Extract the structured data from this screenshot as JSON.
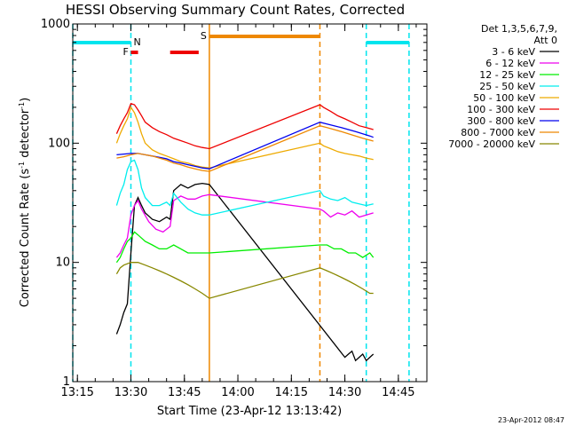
{
  "chart_data": {
    "type": "line",
    "title": "HESSI Observing Summary Count Rates, Corrected",
    "xlabel": "Start Time (23-Apr-12 13:13:42)",
    "ylabel": "Corrected Count Rate (s",
    "ylabel_sup": "-1",
    "ylabel_mid": " detector",
    "ylabel_end": ")",
    "footer": "23-Apr-2012 08:47",
    "y_scale": "log",
    "ylim": [
      1,
      1000
    ],
    "xlim": [
      "13:13:42",
      "14:53"
    ],
    "y_ticks": [
      {
        "v": 1,
        "label": "1"
      },
      {
        "v": 10,
        "label": "10"
      },
      {
        "v": 100,
        "label": "100"
      },
      {
        "v": 1000,
        "label": "1000"
      }
    ],
    "x_ticks": [
      {
        "t": "13:15",
        "label": "13:15"
      },
      {
        "t": "13:30",
        "label": "13:30"
      },
      {
        "t": "13:45",
        "label": "13:45"
      },
      {
        "t": "14:00",
        "label": "14:00"
      },
      {
        "t": "14:15",
        "label": "14:15"
      },
      {
        "t": "14:30",
        "label": "14:30"
      },
      {
        "t": "14:45",
        "label": "14:45"
      }
    ],
    "legend": {
      "header": [
        "Det 1,3,5,6,7,9,",
        "Att 0"
      ],
      "placement": "right"
    },
    "flags": {
      "night": {
        "label": "N",
        "color": "#00e5ee",
        "intervals": [
          [
            "13:13:42",
            "13:30"
          ],
          [
            "14:36",
            "14:48"
          ]
        ]
      },
      "flare": {
        "label": "F",
        "color": "#ee0000",
        "intervals": [
          [
            "13:30",
            "13:32"
          ],
          [
            "13:41",
            "13:49"
          ]
        ]
      },
      "saa": {
        "label": "S",
        "color": "#ee8800",
        "intervals": [
          [
            "13:52",
            "14:23"
          ]
        ]
      }
    },
    "series": [
      {
        "name": "3 - 6 keV",
        "color": "#000000",
        "x": [
          "13:26",
          "13:27",
          "13:28",
          "13:29",
          "13:30",
          "13:31",
          "13:32",
          "13:33",
          "13:34",
          "13:36",
          "13:38",
          "13:40",
          "13:41",
          "13:42",
          "13:44",
          "13:46",
          "13:48",
          "13:50",
          "13:52",
          "14:30",
          "14:31",
          "14:32",
          "14:33",
          "14:34",
          "14:35",
          "14:36",
          "14:37",
          "14:38"
        ],
        "y": [
          2.5,
          3,
          3.8,
          4.5,
          12,
          30,
          35,
          30,
          26,
          23,
          22,
          24,
          23,
          40,
          45,
          42,
          45,
          46,
          45,
          1.6,
          1.7,
          1.8,
          1.5,
          1.6,
          1.7,
          1.5,
          1.6,
          1.7
        ]
      },
      {
        "name": "6 - 12 keV",
        "color": "#ee00ee",
        "x": [
          "13:26",
          "13:27",
          "13:28",
          "13:29",
          "13:30",
          "13:31",
          "13:32",
          "13:33",
          "13:35",
          "13:37",
          "13:39",
          "13:41",
          "13:42",
          "13:44",
          "13:46",
          "13:48",
          "13:50",
          "13:52",
          "14:23",
          "14:24",
          "14:26",
          "14:28",
          "14:30",
          "14:32",
          "14:34",
          "14:36",
          "14:38"
        ],
        "y": [
          11,
          12,
          14,
          16,
          25,
          30,
          33,
          28,
          22,
          19,
          18,
          20,
          33,
          36,
          34,
          34,
          36,
          37,
          28,
          27,
          24,
          26,
          25,
          27,
          24,
          25,
          26
        ]
      },
      {
        "name": "12 - 25 keV",
        "color": "#00ee00",
        "x": [
          "13:26",
          "13:27",
          "13:28",
          "13:29",
          "13:30",
          "13:31",
          "13:32",
          "13:34",
          "13:36",
          "13:38",
          "13:40",
          "13:42",
          "13:44",
          "13:46",
          "13:48",
          "13:50",
          "13:52",
          "14:23",
          "14:25",
          "14:27",
          "14:29",
          "14:31",
          "14:33",
          "14:35",
          "14:37",
          "14:38"
        ],
        "y": [
          10,
          11,
          13,
          15,
          16,
          18,
          17,
          15,
          14,
          13,
          13,
          14,
          13,
          12,
          12,
          12,
          12,
          14,
          14,
          13,
          13,
          12,
          12,
          11,
          12,
          11
        ]
      },
      {
        "name": "25 - 50 keV",
        "color": "#00eeee",
        "x": [
          "13:26",
          "13:27",
          "13:28",
          "13:29",
          "13:30",
          "13:31",
          "13:32",
          "13:33",
          "13:34",
          "13:36",
          "13:38",
          "13:40",
          "13:41",
          "13:42",
          "13:44",
          "13:46",
          "13:48",
          "13:50",
          "13:52",
          "14:23",
          "14:24",
          "14:26",
          "14:28",
          "14:30",
          "14:32",
          "14:34",
          "14:36",
          "14:38"
        ],
        "y": [
          30,
          38,
          45,
          60,
          70,
          72,
          60,
          42,
          35,
          30,
          30,
          32,
          30,
          38,
          32,
          28,
          26,
          25,
          25,
          40,
          36,
          34,
          33,
          35,
          32,
          31,
          30,
          31
        ]
      },
      {
        "name": "50 - 100 keV",
        "color": "#eeaa00",
        "x": [
          "13:26",
          "13:27",
          "13:28",
          "13:29",
          "13:30",
          "13:31",
          "13:32",
          "13:33",
          "13:34",
          "13:36",
          "13:38",
          "13:40",
          "13:42",
          "13:44",
          "13:46",
          "13:48",
          "13:50",
          "13:52",
          "14:23",
          "14:24",
          "14:26",
          "14:28",
          "14:30",
          "14:32",
          "14:34",
          "14:36",
          "14:38"
        ],
        "y": [
          100,
          120,
          140,
          160,
          200,
          180,
          150,
          120,
          100,
          88,
          82,
          78,
          74,
          70,
          68,
          65,
          63,
          62,
          100,
          95,
          90,
          85,
          82,
          80,
          78,
          75,
          73
        ]
      },
      {
        "name": "100 - 300 keV",
        "color": "#ee0000",
        "x": [
          "13:26",
          "13:27",
          "13:28",
          "13:29",
          "13:30",
          "13:31",
          "13:32",
          "13:33",
          "13:34",
          "13:36",
          "13:38",
          "13:40",
          "13:42",
          "13:44",
          "13:46",
          "13:48",
          "13:50",
          "13:52",
          "14:23",
          "14:24",
          "14:26",
          "14:28",
          "14:30",
          "14:32",
          "14:34",
          "14:36",
          "14:38"
        ],
        "y": [
          120,
          140,
          160,
          180,
          215,
          210,
          190,
          170,
          150,
          135,
          125,
          118,
          110,
          105,
          100,
          95,
          92,
          90,
          210,
          200,
          185,
          170,
          160,
          150,
          140,
          135,
          130
        ]
      },
      {
        "name": "300 - 800 keV",
        "color": "#0000ee",
        "x": [
          "13:26",
          "13:28",
          "13:30",
          "13:32",
          "13:34",
          "13:36",
          "13:38",
          "13:40",
          "13:42",
          "13:44",
          "13:46",
          "13:48",
          "13:50",
          "13:52",
          "14:23",
          "14:25",
          "14:27",
          "14:29",
          "14:31",
          "14:33",
          "14:35",
          "14:37",
          "14:38"
        ],
        "y": [
          80,
          81,
          82,
          82,
          80,
          78,
          76,
          74,
          70,
          68,
          66,
          64,
          62,
          61,
          150,
          145,
          140,
          135,
          130,
          125,
          120,
          115,
          112
        ]
      },
      {
        "name": "800 - 7000 keV",
        "color": "#ee8800",
        "x": [
          "13:26",
          "13:28",
          "13:30",
          "13:32",
          "13:34",
          "13:36",
          "13:38",
          "13:40",
          "13:42",
          "13:44",
          "13:46",
          "13:48",
          "13:50",
          "13:52",
          "14:23",
          "14:25",
          "14:27",
          "14:29",
          "14:31",
          "14:33",
          "14:35",
          "14:37",
          "14:38"
        ],
        "y": [
          75,
          77,
          80,
          82,
          80,
          78,
          75,
          72,
          68,
          66,
          63,
          61,
          59,
          58,
          140,
          135,
          130,
          125,
          120,
          115,
          110,
          106,
          104
        ]
      },
      {
        "name": "7000 - 20000 keV",
        "color": "#888800",
        "x": [
          "13:26",
          "13:27",
          "13:28",
          "13:30",
          "13:32",
          "13:34",
          "13:36",
          "13:38",
          "13:40",
          "13:42",
          "13:44",
          "13:46",
          "13:48",
          "13:50",
          "13:52",
          "14:23",
          "14:25",
          "14:27",
          "14:29",
          "14:31",
          "14:33",
          "14:35",
          "14:37",
          "14:38"
        ],
        "y": [
          8,
          9,
          9.5,
          10,
          10,
          9.5,
          9,
          8.5,
          8,
          7.5,
          7,
          6.5,
          6,
          5.5,
          5,
          9,
          8.5,
          8,
          7.5,
          7,
          6.5,
          6,
          5.5,
          5.5
        ]
      }
    ]
  }
}
